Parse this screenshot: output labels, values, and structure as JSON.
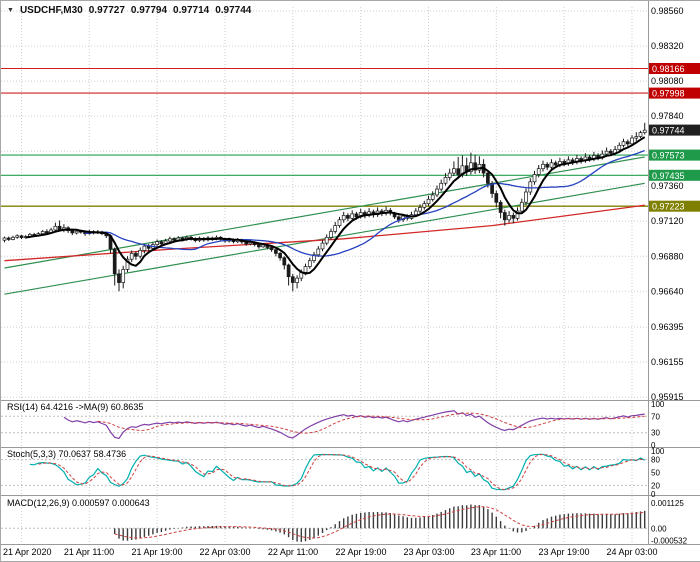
{
  "header": {
    "symbol": "USDCHF,M30",
    "open": "0.97727",
    "high": "0.97794",
    "low": "0.97714",
    "close": "0.97744"
  },
  "colors": {
    "grid": "#cfcfcf",
    "candle": "#1a1a1a",
    "bull": "#ffffff",
    "ma_fast": "#000000",
    "ma_mid": "#2742c0",
    "ma_slow": "#d22828",
    "channel": "#2f8f4f",
    "level": {
      "resistance": "#d02020",
      "support": "#22a050",
      "pivot": "#808000"
    },
    "badge": {
      "resistance": "#c00000",
      "support": "#1f9a4a",
      "pivot": "#808000",
      "current": "#202020"
    },
    "rsi": "#8040a8",
    "stoch": "#00b0b0",
    "signal": "#d04040",
    "macd_bar": "#3c3c3c"
  },
  "y_axis": {
    "grid_values": [
      98560,
      98320,
      98080,
      97840,
      97600,
      97360,
      97120,
      96880,
      96640,
      96395,
      96155,
      95915
    ],
    "labels": [
      {
        "text": "0.98560",
        "value": 98560
      },
      {
        "text": "0.98320",
        "value": 98320
      },
      {
        "text": "0.98080",
        "value": 98080
      },
      {
        "text": "0.97840",
        "value": 97840
      },
      {
        "text": "0.97360",
        "value": 97360
      },
      {
        "text": "0.97120",
        "value": 97120
      },
      {
        "text": "0.96880",
        "value": 96880
      },
      {
        "text": "0.96640",
        "value": 96640
      },
      {
        "text": "0.96395",
        "value": 96395
      },
      {
        "text": "0.96155",
        "value": 96155
      },
      {
        "text": "0.95915",
        "value": 95915
      }
    ]
  },
  "levels": [
    {
      "text": "0.98166",
      "value": 98166,
      "kind": "resistance"
    },
    {
      "text": "0.97998",
      "value": 97998,
      "kind": "resistance"
    },
    {
      "text": "0.97744",
      "value": 97744,
      "kind": "current"
    },
    {
      "text": "0.97573",
      "value": 97573,
      "kind": "support"
    },
    {
      "text": "0.97435",
      "value": 97435,
      "kind": "support"
    },
    {
      "text": "0.97223",
      "value": 97223,
      "kind": "pivot"
    }
  ],
  "x_axis": {
    "labels": [
      {
        "text": "21 Apr 2020",
        "index": 4
      },
      {
        "text": "21 Apr 11:00",
        "index": 20
      },
      {
        "text": "21 Apr 19:00",
        "index": 36
      },
      {
        "text": "22 Apr 03:00",
        "index": 52
      },
      {
        "text": "22 Apr 11:00",
        "index": 68
      },
      {
        "text": "22 Apr 19:00",
        "index": 84
      },
      {
        "text": "23 Apr 03:00",
        "index": 100
      },
      {
        "text": "23 Apr 11:00",
        "index": 116
      },
      {
        "text": "23 Apr 19:00",
        "index": 132
      },
      {
        "text": "24 Apr 03:00",
        "index": 148
      }
    ]
  },
  "chart_data": {
    "type": "candlestick",
    "symbol": "USDCHF",
    "timeframe": "M30",
    "title": "USDCHF,M30 0.97727 0.97794 0.97714 0.97744",
    "price_scale": 100000,
    "ylim": [
      95915,
      98560
    ],
    "candles_format": [
      "open",
      "high",
      "low",
      "close"
    ],
    "candles": [
      [
        96990,
        97015,
        96975,
        97005
      ],
      [
        97005,
        97015,
        96985,
        96995
      ],
      [
        96995,
        97020,
        96990,
        97010
      ],
      [
        97010,
        97030,
        97000,
        97020
      ],
      [
        97020,
        97028,
        96998,
        97008
      ],
      [
        97008,
        97025,
        97000,
        97015
      ],
      [
        97015,
        97040,
        97010,
        97030
      ],
      [
        97030,
        97040,
        97012,
        97022
      ],
      [
        97022,
        97045,
        97015,
        97035
      ],
      [
        97035,
        97060,
        97028,
        97050
      ],
      [
        97050,
        97065,
        97030,
        97040
      ],
      [
        97040,
        97075,
        97035,
        97060
      ],
      [
        97060,
        97110,
        97050,
        97085
      ],
      [
        97085,
        97125,
        97050,
        97060
      ],
      [
        97060,
        97100,
        97045,
        97075
      ],
      [
        97075,
        97085,
        97040,
        97055
      ],
      [
        97055,
        97065,
        97025,
        97040
      ],
      [
        97040,
        97065,
        97030,
        97052
      ],
      [
        97052,
        97062,
        97035,
        97045
      ],
      [
        97045,
        97055,
        97020,
        97035
      ],
      [
        97035,
        97062,
        97028,
        97050
      ],
      [
        97050,
        97058,
        97030,
        97040
      ],
      [
        97040,
        97060,
        97032,
        97048
      ],
      [
        97048,
        97055,
        97025,
        97035
      ],
      [
        97035,
        97045,
        97005,
        97020
      ],
      [
        97020,
        97030,
        96900,
        96930
      ],
      [
        96930,
        96940,
        96680,
        96760
      ],
      [
        96760,
        96790,
        96640,
        96700
      ],
      [
        96700,
        96815,
        96660,
        96790
      ],
      [
        96790,
        96880,
        96770,
        96860
      ],
      [
        96860,
        96920,
        96840,
        96900
      ],
      [
        96900,
        96915,
        96855,
        96880
      ],
      [
        96880,
        96940,
        96865,
        96920
      ],
      [
        96920,
        96965,
        96900,
        96950
      ],
      [
        96950,
        96965,
        96915,
        96935
      ],
      [
        96935,
        96975,
        96920,
        96960
      ],
      [
        96960,
        96995,
        96945,
        96980
      ],
      [
        96980,
        96990,
        96950,
        96965
      ],
      [
        96965,
        97000,
        96955,
        96985
      ],
      [
        96985,
        97015,
        96970,
        97000
      ],
      [
        97000,
        97010,
        96975,
        96990
      ],
      [
        96990,
        97018,
        96980,
        97005
      ],
      [
        97005,
        97015,
        96982,
        96995
      ],
      [
        96995,
        97022,
        96985,
        97010
      ],
      [
        97010,
        97020,
        96988,
        97000
      ],
      [
        97000,
        97010,
        96975,
        96988
      ],
      [
        96988,
        97015,
        96978,
        97002
      ],
      [
        97002,
        97012,
        96980,
        96992
      ],
      [
        96992,
        97018,
        96982,
        97005
      ],
      [
        97005,
        97015,
        96985,
        96998
      ],
      [
        96998,
        97022,
        96990,
        97010
      ],
      [
        97010,
        97018,
        96986,
        96998
      ],
      [
        96998,
        97008,
        96972,
        96985
      ],
      [
        96985,
        97008,
        96975,
        96995
      ],
      [
        96995,
        97002,
        96968,
        96980
      ],
      [
        96980,
        97005,
        96970,
        96992
      ],
      [
        96992,
        97000,
        96965,
        96978
      ],
      [
        96978,
        96990,
        96952,
        96965
      ],
      [
        96965,
        96988,
        96955,
        96975
      ],
      [
        96975,
        96982,
        96948,
        96960
      ],
      [
        96960,
        96970,
        96932,
        96945
      ],
      [
        96945,
        96970,
        96938,
        96958
      ],
      [
        96958,
        96965,
        96928,
        96940
      ],
      [
        96940,
        96950,
        96910,
        96925
      ],
      [
        96925,
        96935,
        96880,
        96900
      ],
      [
        96900,
        96910,
        96850,
        96870
      ],
      [
        96870,
        96880,
        96790,
        96820
      ],
      [
        96820,
        96830,
        96680,
        96740
      ],
      [
        96740,
        96760,
        96640,
        96700
      ],
      [
        96700,
        96750,
        96660,
        96730
      ],
      [
        96730,
        96790,
        96710,
        96770
      ],
      [
        96770,
        96830,
        96750,
        96810
      ],
      [
        96810,
        96870,
        96795,
        96850
      ],
      [
        96850,
        96910,
        96835,
        96890
      ],
      [
        96890,
        96950,
        96875,
        96930
      ],
      [
        96930,
        96990,
        96915,
        96970
      ],
      [
        96970,
        97030,
        96955,
        97010
      ],
      [
        97010,
        97070,
        96995,
        97050
      ],
      [
        97050,
        97115,
        97035,
        97090
      ],
      [
        97090,
        97150,
        97075,
        97130
      ],
      [
        97130,
        97185,
        97110,
        97160
      ],
      [
        97160,
        97175,
        97120,
        97140
      ],
      [
        97140,
        97195,
        97125,
        97170
      ],
      [
        97170,
        97185,
        97130,
        97150
      ],
      [
        97150,
        97205,
        97138,
        97180
      ],
      [
        97180,
        97195,
        97140,
        97160
      ],
      [
        97160,
        97210,
        97148,
        97185
      ],
      [
        97185,
        97200,
        97145,
        97165
      ],
      [
        97165,
        97215,
        97150,
        97190
      ],
      [
        97190,
        97205,
        97155,
        97175
      ],
      [
        97175,
        97220,
        97160,
        97195
      ],
      [
        97195,
        97210,
        97160,
        97175
      ],
      [
        97175,
        97185,
        97135,
        97150
      ],
      [
        97150,
        97160,
        97110,
        97130
      ],
      [
        97130,
        97170,
        97115,
        97155
      ],
      [
        97155,
        97168,
        97125,
        97140
      ],
      [
        97140,
        97185,
        97130,
        97165
      ],
      [
        97165,
        97210,
        97150,
        97190
      ],
      [
        97190,
        97235,
        97175,
        97215
      ],
      [
        97215,
        97260,
        97200,
        97240
      ],
      [
        97240,
        97295,
        97225,
        97270
      ],
      [
        97270,
        97325,
        97255,
        97300
      ],
      [
        97300,
        97365,
        97285,
        97340
      ],
      [
        97340,
        97405,
        97325,
        97380
      ],
      [
        97380,
        97450,
        97365,
        97420
      ],
      [
        97420,
        97480,
        97400,
        97450
      ],
      [
        97450,
        97530,
        97430,
        97480
      ],
      [
        97480,
        97560,
        97420,
        97440
      ],
      [
        97440,
        97570,
        97420,
        97500
      ],
      [
        97500,
        97555,
        97430,
        97460
      ],
      [
        97460,
        97590,
        97440,
        97520
      ],
      [
        97520,
        97575,
        97445,
        97470
      ],
      [
        97470,
        97565,
        97450,
        97510
      ],
      [
        97510,
        97545,
        97420,
        97450
      ],
      [
        97450,
        97470,
        97350,
        97380
      ],
      [
        97380,
        97395,
        97280,
        97310
      ],
      [
        97310,
        97330,
        97215,
        97250
      ],
      [
        97250,
        97265,
        97140,
        97180
      ],
      [
        97180,
        97200,
        97090,
        97130
      ],
      [
        97130,
        97190,
        97110,
        97160
      ],
      [
        97160,
        97180,
        97105,
        97140
      ],
      [
        97140,
        97215,
        97125,
        97190
      ],
      [
        97190,
        97275,
        97170,
        97250
      ],
      [
        97250,
        97345,
        97230,
        97320
      ],
      [
        97320,
        97415,
        97300,
        97390
      ],
      [
        97390,
        97465,
        97370,
        97440
      ],
      [
        97440,
        97505,
        97420,
        97480
      ],
      [
        97480,
        97535,
        97460,
        97510
      ],
      [
        97510,
        97525,
        97470,
        97490
      ],
      [
        97490,
        97545,
        97475,
        97520
      ],
      [
        97520,
        97535,
        97485,
        97505
      ],
      [
        97505,
        97555,
        97490,
        97530
      ],
      [
        97530,
        97545,
        97498,
        97515
      ],
      [
        97515,
        97565,
        97500,
        97540
      ],
      [
        97540,
        97555,
        97505,
        97525
      ],
      [
        97525,
        97575,
        97510,
        97550
      ],
      [
        97550,
        97565,
        97515,
        97535
      ],
      [
        97535,
        97585,
        97520,
        97560
      ],
      [
        97560,
        97575,
        97528,
        97545
      ],
      [
        97545,
        97595,
        97532,
        97570
      ],
      [
        97570,
        97585,
        97538,
        97555
      ],
      [
        97555,
        97605,
        97542,
        97580
      ],
      [
        97580,
        97625,
        97565,
        97600
      ],
      [
        97600,
        97615,
        97568,
        97585
      ],
      [
        97585,
        97635,
        97572,
        97610
      ],
      [
        97610,
        97660,
        97595,
        97640
      ],
      [
        97640,
        97685,
        97625,
        97665
      ],
      [
        97665,
        97680,
        97632,
        97650
      ],
      [
        97650,
        97710,
        97638,
        97690
      ],
      [
        97690,
        97730,
        97670,
        97700
      ],
      [
        97700,
        97740,
        97690,
        97727
      ],
      [
        97727,
        97794,
        97714,
        97744
      ]
    ],
    "overlays": {
      "ma_fast": {
        "type": "sma",
        "period": 6
      },
      "ma_mid": {
        "type": "sma",
        "period": 20
      },
      "ma_slow_points": [
        [
          0,
          96850
        ],
        [
          40,
          96930
        ],
        [
          80,
          97000
        ],
        [
          115,
          97090
        ],
        [
          151,
          97230
        ]
      ],
      "channel_upper": [
        [
          0,
          96800
        ],
        [
          151,
          97560
        ]
      ],
      "channel_lower": [
        [
          0,
          96620
        ],
        [
          151,
          97380
        ]
      ]
    },
    "indicators": {
      "rsi": {
        "label": "RSI(14) 64.4216 ->MA(9) 60.8635",
        "period": 14,
        "ma_period": 9,
        "axis": [
          {
            "t": "100",
            "v": 100
          },
          {
            "t": "70",
            "v": 70
          },
          {
            "t": "30",
            "v": 30
          },
          {
            "t": "0",
            "v": 0
          }
        ],
        "level_lines": [
          70,
          30
        ]
      },
      "stoch": {
        "label": "Stoch(5,3,3) 70.0637 58.4736",
        "k": 5,
        "slowing": 3,
        "d": 3,
        "axis": [
          {
            "t": "100",
            "v": 100
          },
          {
            "t": "80",
            "v": 80
          },
          {
            "t": "50",
            "v": 50
          },
          {
            "t": "20",
            "v": 20
          },
          {
            "t": "0",
            "v": 0
          }
        ],
        "level_lines": [
          80,
          20
        ]
      },
      "macd": {
        "label": "MACD(12,26,9) 0.000597 0.000643",
        "fast": 12,
        "slow": 26,
        "signal": 9,
        "axis": [
          {
            "t": "0.001125",
            "v": 0.001125
          },
          {
            "t": "0.00",
            "v": 0
          },
          {
            "t": "-0.000532",
            "v": -0.000532
          }
        ],
        "level_lines": [
          0
        ]
      }
    }
  }
}
